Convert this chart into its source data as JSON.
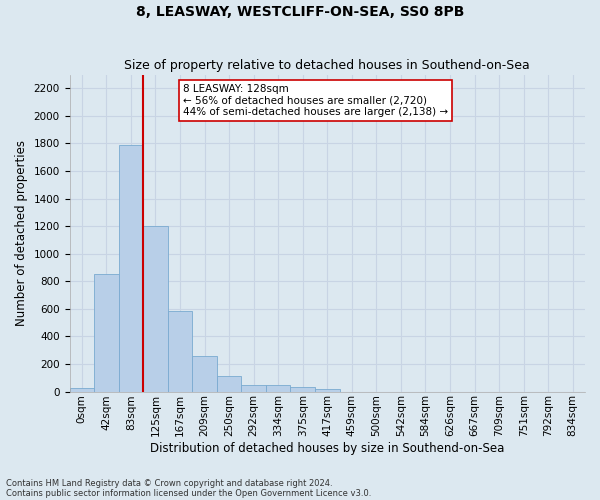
{
  "title": "8, LEASWAY, WESTCLIFF-ON-SEA, SS0 8PB",
  "subtitle": "Size of property relative to detached houses in Southend-on-Sea",
  "xlabel": "Distribution of detached houses by size in Southend-on-Sea",
  "ylabel": "Number of detached properties",
  "bar_values": [
    25,
    850,
    1790,
    1200,
    585,
    260,
    115,
    50,
    48,
    32,
    18,
    0,
    0,
    0,
    0,
    0,
    0,
    0,
    0,
    0,
    0
  ],
  "bar_labels": [
    "0sqm",
    "42sqm",
    "83sqm",
    "125sqm",
    "167sqm",
    "209sqm",
    "250sqm",
    "292sqm",
    "334sqm",
    "375sqm",
    "417sqm",
    "459sqm",
    "500sqm",
    "542sqm",
    "584sqm",
    "626sqm",
    "667sqm",
    "709sqm",
    "751sqm",
    "792sqm",
    "834sqm"
  ],
  "bar_color": "#b8cfe8",
  "bar_edgecolor": "#7aaad0",
  "grid_color": "#c8d4e4",
  "background_color": "#dce8f0",
  "vline_color": "#cc0000",
  "annotation_text": "8 LEASWAY: 128sqm\n← 56% of detached houses are smaller (2,720)\n44% of semi-detached houses are larger (2,138) →",
  "annotation_box_color": "#ffffff",
  "annotation_box_edgecolor": "#cc0000",
  "ylim": [
    0,
    2300
  ],
  "yticks": [
    0,
    200,
    400,
    600,
    800,
    1000,
    1200,
    1400,
    1600,
    1800,
    2000,
    2200
  ],
  "footnote1": "Contains HM Land Registry data © Crown copyright and database right 2024.",
  "footnote2": "Contains public sector information licensed under the Open Government Licence v3.0.",
  "title_fontsize": 10,
  "subtitle_fontsize": 9,
  "label_fontsize": 8.5,
  "tick_fontsize": 7.5,
  "annot_fontsize": 7.5,
  "footnote_fontsize": 6
}
